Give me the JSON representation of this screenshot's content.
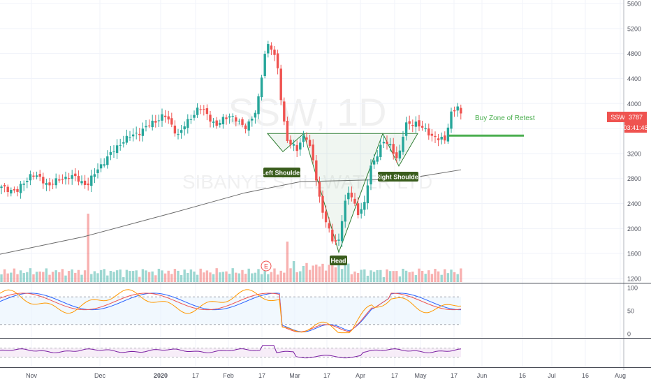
{
  "chart_data": {
    "type": "candlestick",
    "symbol": "SSW",
    "timeframe": "1D",
    "watermark_title": "SSW, 1D",
    "watermark_subtitle": "SIBANYE STILLWATER LTD",
    "price_axis": {
      "ticks": [
        "5600",
        "5200",
        "4800",
        "4400",
        "4000",
        "3600",
        "3200",
        "2800",
        "2400",
        "2000",
        "1600",
        "1200"
      ],
      "ylim": [
        1150,
        5650
      ]
    },
    "last_price": "3787",
    "countdown": "03:41:48",
    "time_axis": {
      "labels": [
        "Nov",
        "Dec",
        "2020",
        "17",
        "Feb",
        "17",
        "Mar",
        "17",
        "Apr",
        "17",
        "May",
        "17",
        "Jun",
        "16",
        "Jul",
        "16",
        "Aug"
      ]
    },
    "annotations": {
      "left_shoulder": "Left Shoulder",
      "head": "Head",
      "right_shoulder": "Right Shoulder",
      "buy_zone": "Buy Zone of Retest",
      "earnings_marker": "E",
      "neckline_price": 3520,
      "buy_zone_price": 3487
    },
    "oscillator": {
      "ticks": [
        "100",
        "50",
        "0"
      ],
      "levels": [
        80,
        20
      ]
    },
    "colors": {
      "up": "#26a69a",
      "down": "#ef5350",
      "ma": "#6b6b6b",
      "pattern": "#2e7d32",
      "buy_zone": "#4caf50",
      "label_bg": "#3a5d1d",
      "price_tag": "#ef5350",
      "stoch_k": "#2962ff",
      "stoch_d": "#ef5350",
      "stoch_3": "#ff9800",
      "rsi": "#7b1fa2"
    }
  }
}
